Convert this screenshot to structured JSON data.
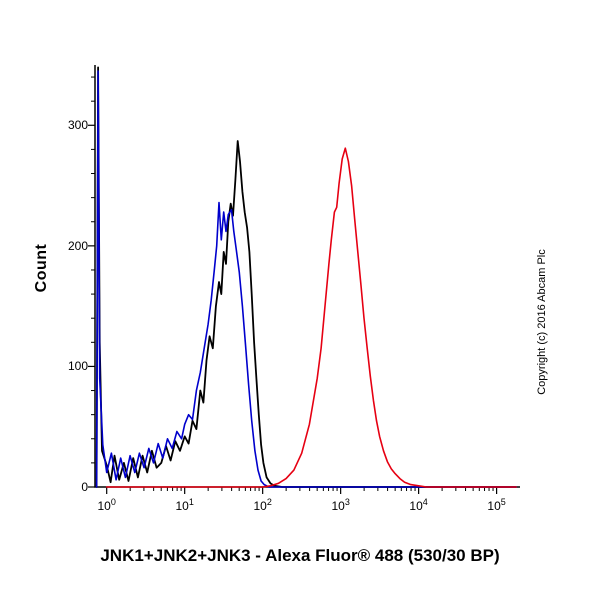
{
  "chart": {
    "title": "JNK1+JNK2+JNK3 - Alexa Fluor® 488 (530/30 BP)",
    "ylabel": "Count",
    "copyright": "Copyright (c) 2016 Abcam Plc",
    "axis_color": "#000000",
    "background": "#ffffff"
  },
  "chart_data": {
    "type": "line",
    "subtype": "flow-cytometry-histogram-overlay",
    "title": "JNK1+JNK2+JNK3 - Alexa Fluor® 488 (530/30 BP)",
    "xlabel": "",
    "ylabel": "Count",
    "x_scale": "log10",
    "x_tick_base": "10",
    "x_tick_exponents": [
      0,
      1,
      2,
      3,
      4,
      5
    ],
    "ylim": [
      0,
      350
    ],
    "y_ticks": [
      0,
      100,
      200,
      300
    ],
    "grid": false,
    "legend": "none",
    "series": [
      {
        "name": "black-control-histogram",
        "color": "#000000",
        "width": 1.8,
        "points": [
          [
            -0.13,
            0
          ],
          [
            -0.11,
            348
          ],
          [
            -0.09,
            120
          ],
          [
            -0.06,
            30
          ],
          [
            0.0,
            18
          ],
          [
            0.05,
            4
          ],
          [
            0.1,
            26
          ],
          [
            0.16,
            6
          ],
          [
            0.22,
            20
          ],
          [
            0.28,
            5
          ],
          [
            0.34,
            24
          ],
          [
            0.4,
            8
          ],
          [
            0.46,
            26
          ],
          [
            0.52,
            12
          ],
          [
            0.58,
            30
          ],
          [
            0.64,
            16
          ],
          [
            0.7,
            20
          ],
          [
            0.76,
            34
          ],
          [
            0.82,
            22
          ],
          [
            0.88,
            38
          ],
          [
            0.94,
            30
          ],
          [
            1.0,
            42
          ],
          [
            1.05,
            36
          ],
          [
            1.1,
            55
          ],
          [
            1.15,
            48
          ],
          [
            1.2,
            80
          ],
          [
            1.24,
            70
          ],
          [
            1.28,
            105
          ],
          [
            1.32,
            125
          ],
          [
            1.36,
            115
          ],
          [
            1.4,
            150
          ],
          [
            1.44,
            170
          ],
          [
            1.47,
            160
          ],
          [
            1.5,
            195
          ],
          [
            1.53,
            185
          ],
          [
            1.56,
            220
          ],
          [
            1.59,
            235
          ],
          [
            1.62,
            225
          ],
          [
            1.65,
            255
          ],
          [
            1.68,
            287
          ],
          [
            1.71,
            270
          ],
          [
            1.74,
            245
          ],
          [
            1.77,
            228
          ],
          [
            1.8,
            215
          ],
          [
            1.83,
            195
          ],
          [
            1.86,
            160
          ],
          [
            1.89,
            120
          ],
          [
            1.92,
            90
          ],
          [
            1.95,
            60
          ],
          [
            1.98,
            35
          ],
          [
            2.01,
            20
          ],
          [
            2.05,
            8
          ],
          [
            2.1,
            3
          ],
          [
            2.15,
            1
          ],
          [
            2.25,
            0
          ],
          [
            5.25,
            0
          ]
        ]
      },
      {
        "name": "blue-control-histogram",
        "color": "#0000cc",
        "width": 1.6,
        "points": [
          [
            -0.13,
            0
          ],
          [
            -0.11,
            345
          ],
          [
            -0.09,
            90
          ],
          [
            -0.05,
            35
          ],
          [
            0.0,
            12
          ],
          [
            0.06,
            28
          ],
          [
            0.12,
            6
          ],
          [
            0.18,
            24
          ],
          [
            0.24,
            8
          ],
          [
            0.3,
            26
          ],
          [
            0.36,
            12
          ],
          [
            0.42,
            28
          ],
          [
            0.48,
            16
          ],
          [
            0.54,
            32
          ],
          [
            0.6,
            20
          ],
          [
            0.66,
            36
          ],
          [
            0.72,
            24
          ],
          [
            0.78,
            40
          ],
          [
            0.84,
            32
          ],
          [
            0.9,
            46
          ],
          [
            0.96,
            40
          ],
          [
            1.0,
            52
          ],
          [
            1.05,
            60
          ],
          [
            1.1,
            56
          ],
          [
            1.15,
            80
          ],
          [
            1.2,
            95
          ],
          [
            1.25,
            115
          ],
          [
            1.3,
            135
          ],
          [
            1.34,
            155
          ],
          [
            1.38,
            180
          ],
          [
            1.41,
            200
          ],
          [
            1.44,
            236
          ],
          [
            1.47,
            205
          ],
          [
            1.5,
            228
          ],
          [
            1.53,
            212
          ],
          [
            1.56,
            226
          ],
          [
            1.6,
            230
          ],
          [
            1.63,
            212
          ],
          [
            1.66,
            198
          ],
          [
            1.7,
            178
          ],
          [
            1.74,
            150
          ],
          [
            1.78,
            118
          ],
          [
            1.82,
            85
          ],
          [
            1.86,
            55
          ],
          [
            1.9,
            30
          ],
          [
            1.94,
            14
          ],
          [
            1.98,
            5
          ],
          [
            2.02,
            2
          ],
          [
            2.08,
            0
          ],
          [
            5.25,
            0
          ]
        ]
      },
      {
        "name": "red-stained-histogram",
        "color": "#e60012",
        "width": 1.6,
        "points": [
          [
            0.0,
            0
          ],
          [
            1.5,
            0
          ],
          [
            2.0,
            0
          ],
          [
            2.1,
            1
          ],
          [
            2.2,
            3
          ],
          [
            2.3,
            7
          ],
          [
            2.4,
            14
          ],
          [
            2.5,
            28
          ],
          [
            2.6,
            52
          ],
          [
            2.7,
            90
          ],
          [
            2.75,
            115
          ],
          [
            2.8,
            150
          ],
          [
            2.85,
            185
          ],
          [
            2.88,
            205
          ],
          [
            2.92,
            228
          ],
          [
            2.95,
            232
          ],
          [
            2.98,
            252
          ],
          [
            3.02,
            272
          ],
          [
            3.06,
            281
          ],
          [
            3.1,
            270
          ],
          [
            3.14,
            250
          ],
          [
            3.18,
            222
          ],
          [
            3.22,
            195
          ],
          [
            3.26,
            168
          ],
          [
            3.3,
            140
          ],
          [
            3.34,
            115
          ],
          [
            3.38,
            92
          ],
          [
            3.42,
            72
          ],
          [
            3.46,
            55
          ],
          [
            3.5,
            42
          ],
          [
            3.55,
            30
          ],
          [
            3.6,
            21
          ],
          [
            3.65,
            15
          ],
          [
            3.7,
            11
          ],
          [
            3.76,
            7
          ],
          [
            3.82,
            4
          ],
          [
            3.9,
            2
          ],
          [
            4.0,
            1
          ],
          [
            4.1,
            0
          ],
          [
            5.25,
            0
          ]
        ]
      }
    ]
  }
}
